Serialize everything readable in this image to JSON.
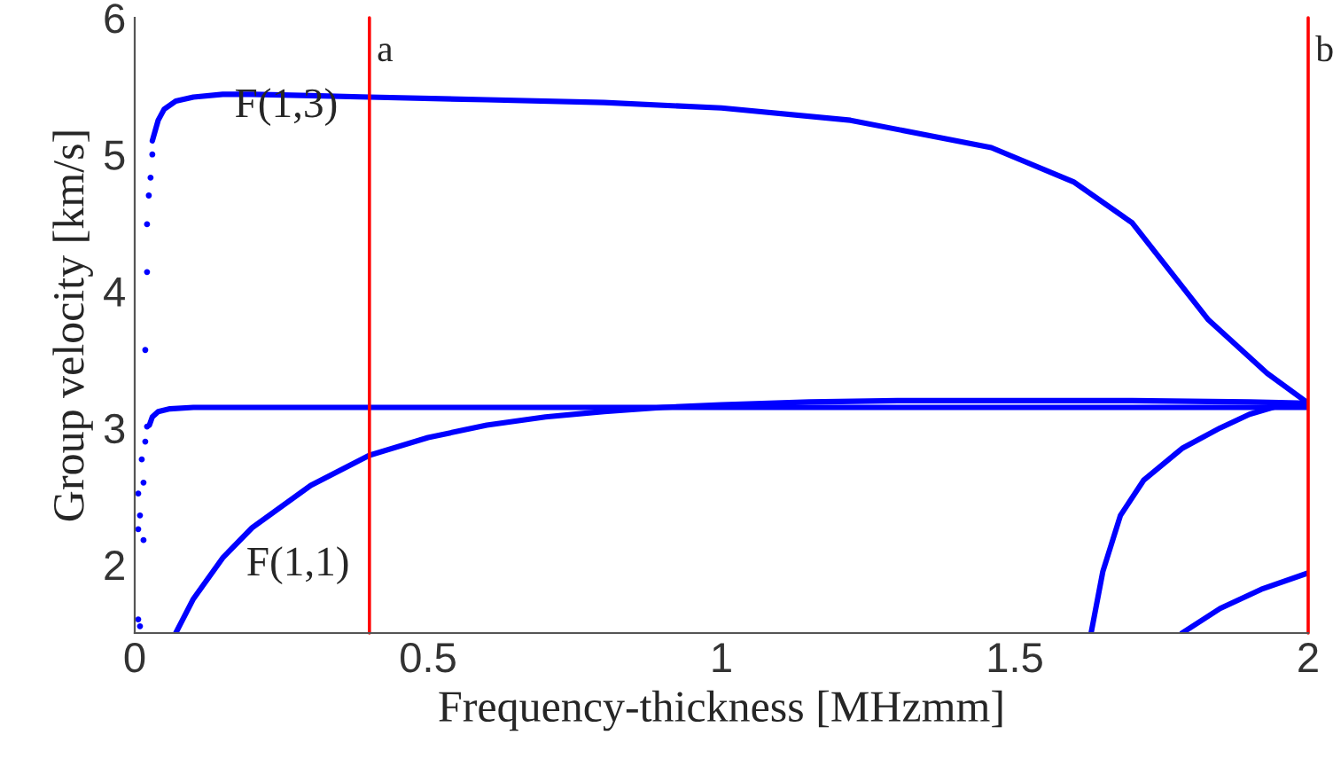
{
  "chart_data": {
    "type": "line",
    "xlabel": "Frequency-thickness [MHzmm]",
    "ylabel": "Group velocity [km/s]",
    "xlim": [
      0,
      2
    ],
    "ylim": [
      1.5,
      6
    ],
    "xticks": [
      0,
      {
        "value": 0.5,
        "label": "0.5"
      },
      1,
      {
        "value": 1.5,
        "label": "1.5"
      },
      2
    ],
    "yticks": [
      2,
      3,
      4,
      5,
      6
    ],
    "grid": false,
    "legend": false,
    "line_style": "solid",
    "series": [
      {
        "color": "#0000ff",
        "x": [
          0.03,
          0.04,
          0.05,
          0.07,
          0.1,
          0.15,
          0.2,
          0.3,
          0.4,
          0.6,
          0.8,
          1.0,
          1.22,
          1.46,
          1.6,
          1.7,
          1.83,
          1.93,
          2.0
        ],
        "values": [
          5.1,
          5.25,
          5.33,
          5.39,
          5.42,
          5.44,
          5.44,
          5.43,
          5.42,
          5.4,
          5.38,
          5.34,
          5.25,
          5.05,
          4.8,
          4.5,
          3.79,
          3.4,
          3.18
        ]
      },
      {
        "color": "#0000ff",
        "x": [
          0.025,
          0.03,
          0.04,
          0.06,
          0.1,
          0.5,
          1.0,
          1.5,
          2.0
        ],
        "values": [
          3.02,
          3.08,
          3.12,
          3.14,
          3.15,
          3.15,
          3.15,
          3.15,
          3.15
        ]
      },
      {
        "color": "#0000ff",
        "x": [
          0.07,
          0.1,
          0.15,
          0.2,
          0.3,
          0.4,
          0.5,
          0.6,
          0.7,
          0.8,
          0.9,
          1.0,
          1.15,
          1.3,
          1.5,
          1.7,
          1.9,
          2.0
        ],
        "values": [
          1.5,
          1.75,
          2.05,
          2.27,
          2.58,
          2.8,
          2.93,
          3.02,
          3.08,
          3.12,
          3.15,
          3.17,
          3.19,
          3.2,
          3.2,
          3.2,
          3.19,
          3.18
        ]
      },
      {
        "color": "#0000ff",
        "x": [
          1.63,
          1.65,
          1.68,
          1.72,
          1.785,
          1.85,
          1.9,
          1.955
        ],
        "values": [
          1.5,
          1.95,
          2.36,
          2.62,
          2.85,
          3.0,
          3.1,
          3.17
        ]
      },
      {
        "color": "#0000ff",
        "x": [
          1.785,
          1.85,
          1.92,
          2.0
        ],
        "values": [
          1.5,
          1.68,
          1.82,
          1.94
        ]
      },
      {
        "type": "scatter",
        "marker": "circle",
        "color": "#0000ff",
        "x": [
          0.03,
          0.027,
          0.024,
          0.021,
          0.021,
          0.018,
          0.021,
          0.018,
          0.012,
          0.015,
          0.006,
          0.009,
          0.006,
          0.015,
          0.006,
          0.009
        ],
        "values": [
          5.0,
          4.83,
          4.7,
          4.49,
          4.14,
          3.57,
          3.01,
          2.9,
          2.77,
          2.6,
          2.52,
          2.36,
          2.26,
          2.18,
          1.6,
          1.55
        ]
      }
    ],
    "ref_lines": [
      {
        "axis": "x",
        "value": 0.4,
        "label": "a",
        "color": "#ff0000"
      },
      {
        "axis": "x",
        "value": 2,
        "label": "b",
        "color": "#ff0000"
      }
    ],
    "annotations": [
      "F(1,3)",
      "F(1,1)"
    ]
  }
}
